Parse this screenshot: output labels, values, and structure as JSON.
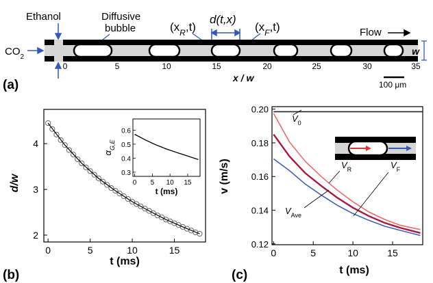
{
  "panel_a": {
    "label": "(a)",
    "ethanol_label": "Ethanol",
    "bubble_label_line1": "Diffusive",
    "bubble_label_line2": "bubble",
    "co2_label_main": "CO",
    "co2_label_sub": "2",
    "xr_label": "(x",
    "xr_sub": "R",
    "xr_tail": ",t)",
    "d_label": "d(t,x)",
    "xf_label": "(x",
    "xf_sub": "F",
    "xf_tail": ",t)",
    "flow_label": "Flow",
    "w_label": "w",
    "axis_title": "x / w",
    "ticks": [
      "0",
      "5",
      "10",
      "15",
      "20",
      "25",
      "30",
      "35"
    ],
    "scalebar_label": "100 μm"
  },
  "chart_data": [
    {
      "type": "scatter",
      "panel_label": "(b)",
      "xlabel": "t (ms)",
      "ylabel": "d/w",
      "xlim": [
        -0.5,
        18.7
      ],
      "ylim": [
        1.85,
        4.75
      ],
      "x_ticks": [
        "0",
        "5",
        "10",
        "15"
      ],
      "y_ticks": [
        "2",
        "3",
        "4"
      ],
      "series": [
        {
          "x": [
            0,
            0.5,
            1,
            1.5,
            2,
            2.5,
            3,
            3.5,
            4,
            4.5,
            5,
            5.5,
            6,
            6.5,
            7,
            7.5,
            8,
            8.5,
            9,
            9.5,
            10,
            10.5,
            11,
            11.5,
            12,
            12.5,
            13,
            13.5,
            14,
            14.5,
            15,
            15.5,
            16,
            16.5,
            17,
            17.5,
            18
          ],
          "y": [
            4.45,
            4.32,
            4.2,
            4.08,
            3.97,
            3.86,
            3.76,
            3.66,
            3.57,
            3.48,
            3.4,
            3.32,
            3.24,
            3.17,
            3.1,
            3.03,
            2.97,
            2.91,
            2.85,
            2.79,
            2.73,
            2.68,
            2.63,
            2.58,
            2.53,
            2.48,
            2.43,
            2.39,
            2.34,
            2.3,
            2.26,
            2.22,
            2.18,
            2.14,
            2.1,
            2.06,
            2.03
          ]
        }
      ],
      "fit_line": {
        "x": [
          0,
          2,
          4,
          6,
          8,
          10,
          12,
          14,
          16,
          18
        ],
        "y": [
          4.45,
          3.97,
          3.57,
          3.24,
          2.97,
          2.73,
          2.53,
          2.34,
          2.18,
          2.03
        ]
      },
      "inset": {
        "type": "line",
        "ylabel": "α",
        "ylabel_sub": "G,E",
        "xlabel": "t (ms)",
        "xlim": [
          -0.5,
          18.5
        ],
        "ylim": [
          0.27,
          0.68
        ],
        "x_ticks": [
          "0",
          "5",
          "10",
          "15"
        ],
        "y_ticks": [
          "0.3",
          "0.4",
          "0.5",
          "0.6"
        ],
        "x": [
          0,
          3,
          6,
          9,
          12,
          15,
          18
        ],
        "y": [
          0.57,
          0.53,
          0.495,
          0.465,
          0.44,
          0.415,
          0.39
        ]
      }
    },
    {
      "type": "line",
      "panel_label": "(c)",
      "xlabel": "t (ms)",
      "ylabel": "v (m/s)",
      "xlim": [
        -0.2,
        18.8
      ],
      "ylim": [
        0.1195,
        0.2015
      ],
      "x_ticks": [
        "0",
        "5",
        "10",
        "15"
      ],
      "y_ticks": [
        "0.12",
        "0.14",
        "0.16",
        "0.18",
        "0.20"
      ],
      "series": [
        {
          "name": "V0",
          "color": "#222222",
          "x": [
            0,
            18.8
          ],
          "y": [
            0.1985,
            0.1985
          ]
        },
        {
          "name": "VF",
          "color": "#ef6a6a",
          "x": [
            0,
            2,
            4,
            6,
            8,
            10,
            12,
            14,
            16,
            18.5
          ],
          "y": [
            0.1975,
            0.1805,
            0.169,
            0.16,
            0.152,
            0.145,
            0.139,
            0.1345,
            0.131,
            0.1285
          ]
        },
        {
          "name": "VAve",
          "color": "#a8183f",
          "x": [
            0,
            2,
            4,
            6,
            8,
            10,
            12,
            14,
            16,
            18.5
          ],
          "y": [
            0.185,
            0.172,
            0.162,
            0.1545,
            0.1475,
            0.1415,
            0.1365,
            0.1325,
            0.1295,
            0.1265
          ]
        },
        {
          "name": "VR",
          "color": "#3f5fc2",
          "x": [
            0,
            2,
            4,
            6,
            8,
            10,
            12,
            14,
            16,
            18.5
          ],
          "y": [
            0.1705,
            0.1635,
            0.1555,
            0.149,
            0.143,
            0.138,
            0.134,
            0.1305,
            0.128,
            0.125
          ]
        }
      ],
      "labels": {
        "v0_main": "V",
        "v0_sub": "0",
        "vr_main": "V",
        "vr_sub": "R",
        "vf_main": "V",
        "vf_sub": "F",
        "vave_main": "V",
        "vave_sub": "Ave"
      }
    }
  ],
  "colors": {
    "channel_black": "#000000",
    "arrow_blue": "#3559b8",
    "bubble_red_arrow": "#e0362f"
  }
}
